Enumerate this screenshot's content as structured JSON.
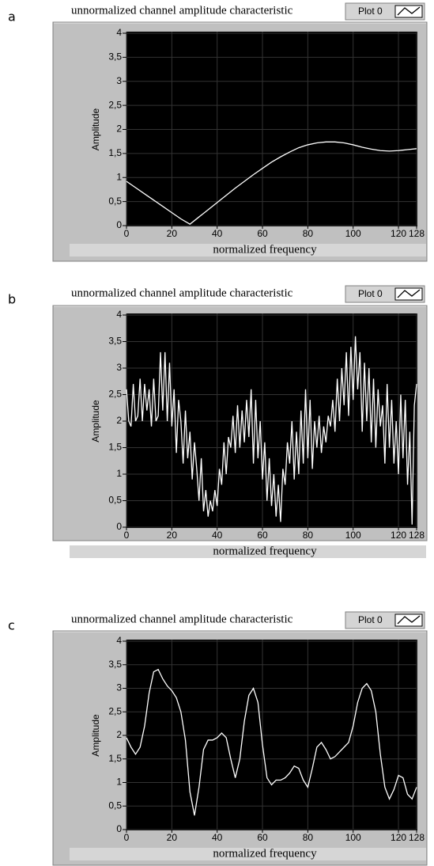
{
  "chart_data": [
    {
      "type": "line",
      "panel_label": "a",
      "title": "unnormalized channel amplitude characteristic",
      "x_label": "normalized frequency",
      "y_label": "Amplitude",
      "x": [
        0,
        4,
        8,
        12,
        16,
        20,
        24,
        28,
        32,
        36,
        40,
        44,
        48,
        52,
        56,
        60,
        64,
        68,
        72,
        76,
        80,
        84,
        88,
        92,
        96,
        100,
        104,
        108,
        112,
        116,
        120,
        124,
        128
      ],
      "series": [
        {
          "name": "Plot 0",
          "color": "#ffffff",
          "values": [
            0.92,
            0.79,
            0.66,
            0.53,
            0.4,
            0.27,
            0.14,
            0.03,
            0.18,
            0.33,
            0.48,
            0.63,
            0.78,
            0.92,
            1.06,
            1.19,
            1.32,
            1.43,
            1.53,
            1.62,
            1.68,
            1.72,
            1.74,
            1.74,
            1.72,
            1.68,
            1.63,
            1.59,
            1.56,
            1.55,
            1.56,
            1.58,
            1.6
          ]
        }
      ],
      "xlim": [
        0,
        128
      ],
      "ylim": [
        0,
        4
      ],
      "xticks": [
        0,
        20,
        40,
        60,
        80,
        100,
        120,
        128
      ],
      "yticks": [
        0,
        {
          "value": 0.5,
          "label": "0,5"
        },
        1,
        {
          "value": 1.5,
          "label": "1,5"
        },
        2,
        {
          "value": 2.5,
          "label": "2,5"
        },
        3,
        {
          "value": 3.5,
          "label": "3,5"
        },
        4
      ],
      "grid": true,
      "legend": "top-right"
    },
    {
      "type": "line",
      "panel_label": "b",
      "title": "unnormalized channel amplitude characteristic",
      "x_label": "normalized frequency",
      "y_label": "Amplitude",
      "x": [
        0,
        1,
        2,
        3,
        4,
        5,
        6,
        7,
        8,
        9,
        10,
        11,
        12,
        13,
        14,
        15,
        16,
        17,
        18,
        19,
        20,
        21,
        22,
        23,
        24,
        25,
        26,
        27,
        28,
        29,
        30,
        31,
        32,
        33,
        34,
        35,
        36,
        37,
        38,
        39,
        40,
        41,
        42,
        43,
        44,
        45,
        46,
        47,
        48,
        49,
        50,
        51,
        52,
        53,
        54,
        55,
        56,
        57,
        58,
        59,
        60,
        61,
        62,
        63,
        64,
        65,
        66,
        67,
        68,
        69,
        70,
        71,
        72,
        73,
        74,
        75,
        76,
        77,
        78,
        79,
        80,
        81,
        82,
        83,
        84,
        85,
        86,
        87,
        88,
        89,
        90,
        91,
        92,
        93,
        94,
        95,
        96,
        97,
        98,
        99,
        100,
        101,
        102,
        103,
        104,
        105,
        106,
        107,
        108,
        109,
        110,
        111,
        112,
        113,
        114,
        115,
        116,
        117,
        118,
        119,
        120,
        121,
        122,
        123,
        124,
        125,
        126,
        127,
        128
      ],
      "series": [
        {
          "name": "Plot 0",
          "color": "#ffffff",
          "values": [
            2.6,
            2.0,
            1.9,
            2.7,
            2.0,
            2.1,
            2.8,
            2.0,
            2.7,
            2.2,
            2.6,
            1.9,
            2.8,
            2.0,
            2.1,
            3.3,
            2.2,
            3.3,
            2.0,
            3.1,
            1.9,
            2.6,
            1.4,
            2.4,
            2.0,
            1.2,
            2.2,
            1.3,
            1.8,
            0.9,
            1.6,
            1.1,
            0.5,
            1.3,
            0.3,
            0.7,
            0.2,
            0.5,
            0.3,
            0.7,
            0.4,
            1.1,
            0.8,
            1.6,
            1.0,
            1.7,
            1.5,
            2.1,
            1.4,
            2.3,
            1.5,
            2.2,
            1.6,
            2.4,
            1.7,
            2.6,
            1.2,
            2.4,
            1.3,
            2.0,
            0.9,
            1.6,
            0.5,
            1.3,
            0.4,
            1.0,
            0.2,
            0.8,
            0.1,
            1.1,
            0.8,
            1.6,
            1.2,
            2.0,
            0.9,
            1.8,
            1.0,
            2.2,
            1.2,
            2.6,
            1.3,
            2.4,
            1.1,
            2.0,
            1.5,
            2.1,
            1.4,
            1.9,
            1.6,
            2.1,
            1.9,
            2.4,
            1.8,
            2.8,
            2.0,
            3.0,
            2.3,
            3.3,
            2.1,
            3.4,
            2.4,
            3.6,
            2.6,
            3.3,
            1.8,
            3.1,
            2.0,
            3.0,
            1.6,
            2.8,
            1.5,
            2.6,
            1.9,
            2.3,
            1.2,
            2.7,
            1.5,
            2.4,
            1.2,
            2.0,
            1.0,
            2.5,
            1.3,
            2.4,
            0.8,
            1.8,
            0.05,
            2.3,
            2.7
          ]
        }
      ],
      "xlim": [
        0,
        128
      ],
      "ylim": [
        0,
        4
      ],
      "xticks": [
        0,
        20,
        40,
        60,
        80,
        100,
        120,
        128
      ],
      "yticks": [
        0,
        {
          "value": 0.5,
          "label": "0,5"
        },
        1,
        {
          "value": 1.5,
          "label": "1,5"
        },
        2,
        {
          "value": 2.5,
          "label": "2,5"
        },
        3,
        {
          "value": 3.5,
          "label": "3,5"
        },
        4
      ],
      "grid": true,
      "legend": "top-right"
    },
    {
      "type": "line",
      "panel_label": "c",
      "title": "unnormalized channel amplitude characteristic",
      "x_label": "normalized frequency",
      "y_label": "Amplitude",
      "x": [
        0,
        2,
        4,
        6,
        8,
        10,
        12,
        14,
        16,
        18,
        20,
        22,
        24,
        26,
        28,
        30,
        32,
        34,
        36,
        38,
        40,
        42,
        44,
        46,
        48,
        50,
        52,
        54,
        56,
        58,
        60,
        62,
        64,
        66,
        68,
        70,
        72,
        74,
        76,
        78,
        80,
        82,
        84,
        86,
        88,
        90,
        92,
        94,
        96,
        98,
        100,
        102,
        104,
        106,
        108,
        110,
        112,
        114,
        116,
        118,
        120,
        122,
        124,
        126,
        128
      ],
      "series": [
        {
          "name": "Plot 0",
          "color": "#ffffff",
          "values": [
            1.95,
            1.75,
            1.6,
            1.75,
            2.2,
            2.9,
            3.35,
            3.4,
            3.2,
            3.05,
            2.95,
            2.8,
            2.5,
            1.9,
            0.8,
            0.3,
            0.9,
            1.7,
            1.9,
            1.9,
            1.95,
            2.05,
            1.95,
            1.5,
            1.1,
            1.5,
            2.3,
            2.85,
            3.0,
            2.7,
            1.8,
            1.1,
            0.95,
            1.05,
            1.05,
            1.1,
            1.2,
            1.35,
            1.3,
            1.05,
            0.9,
            1.3,
            1.75,
            1.85,
            1.7,
            1.5,
            1.55,
            1.65,
            1.75,
            1.85,
            2.2,
            2.7,
            3.0,
            3.1,
            2.95,
            2.5,
            1.6,
            0.9,
            0.65,
            0.85,
            1.15,
            1.1,
            0.75,
            0.65,
            0.9
          ]
        }
      ],
      "xlim": [
        0,
        128
      ],
      "ylim": [
        0,
        4
      ],
      "xticks": [
        0,
        20,
        40,
        60,
        80,
        100,
        120,
        128
      ],
      "yticks": [
        0,
        {
          "value": 0.5,
          "label": "0,5"
        },
        1,
        {
          "value": 1.5,
          "label": "1,5"
        },
        2,
        {
          "value": 2.5,
          "label": "2,5"
        },
        3,
        {
          "value": 3.5,
          "label": "3,5"
        },
        4
      ],
      "grid": true,
      "legend": "top-right"
    }
  ]
}
